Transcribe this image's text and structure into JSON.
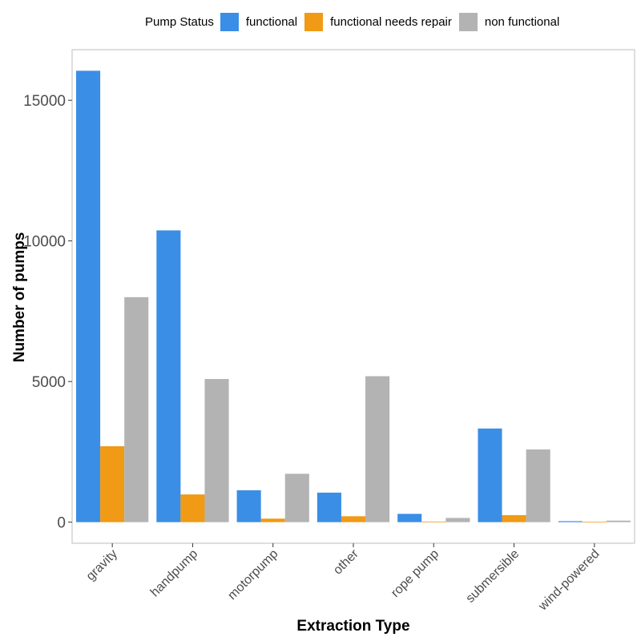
{
  "chart_data": {
    "type": "bar",
    "legend_title": "Pump Status",
    "legend_position": "top",
    "xlabel": "Extraction Type",
    "ylabel": "Number of pumps",
    "categories": [
      "gravity",
      "handpump",
      "motorpump",
      "other",
      "rope pump",
      "submersible",
      "wind-powered"
    ],
    "series": [
      {
        "name": "functional",
        "color": "#3a8ee6",
        "values": [
          16050,
          10375,
          1135,
          1050,
          295,
          3330,
          35
        ]
      },
      {
        "name": "functional needs repair",
        "color": "#f09a15",
        "values": [
          2700,
          985,
          125,
          210,
          20,
          250,
          10
        ]
      },
      {
        "name": "non functional",
        "color": "#b3b3b3",
        "values": [
          8000,
          5090,
          1720,
          5190,
          150,
          2585,
          55
        ]
      }
    ],
    "yticks": [
      0,
      5000,
      10000,
      15000
    ],
    "ylim": [
      -750,
      16800
    ],
    "grid": false
  }
}
